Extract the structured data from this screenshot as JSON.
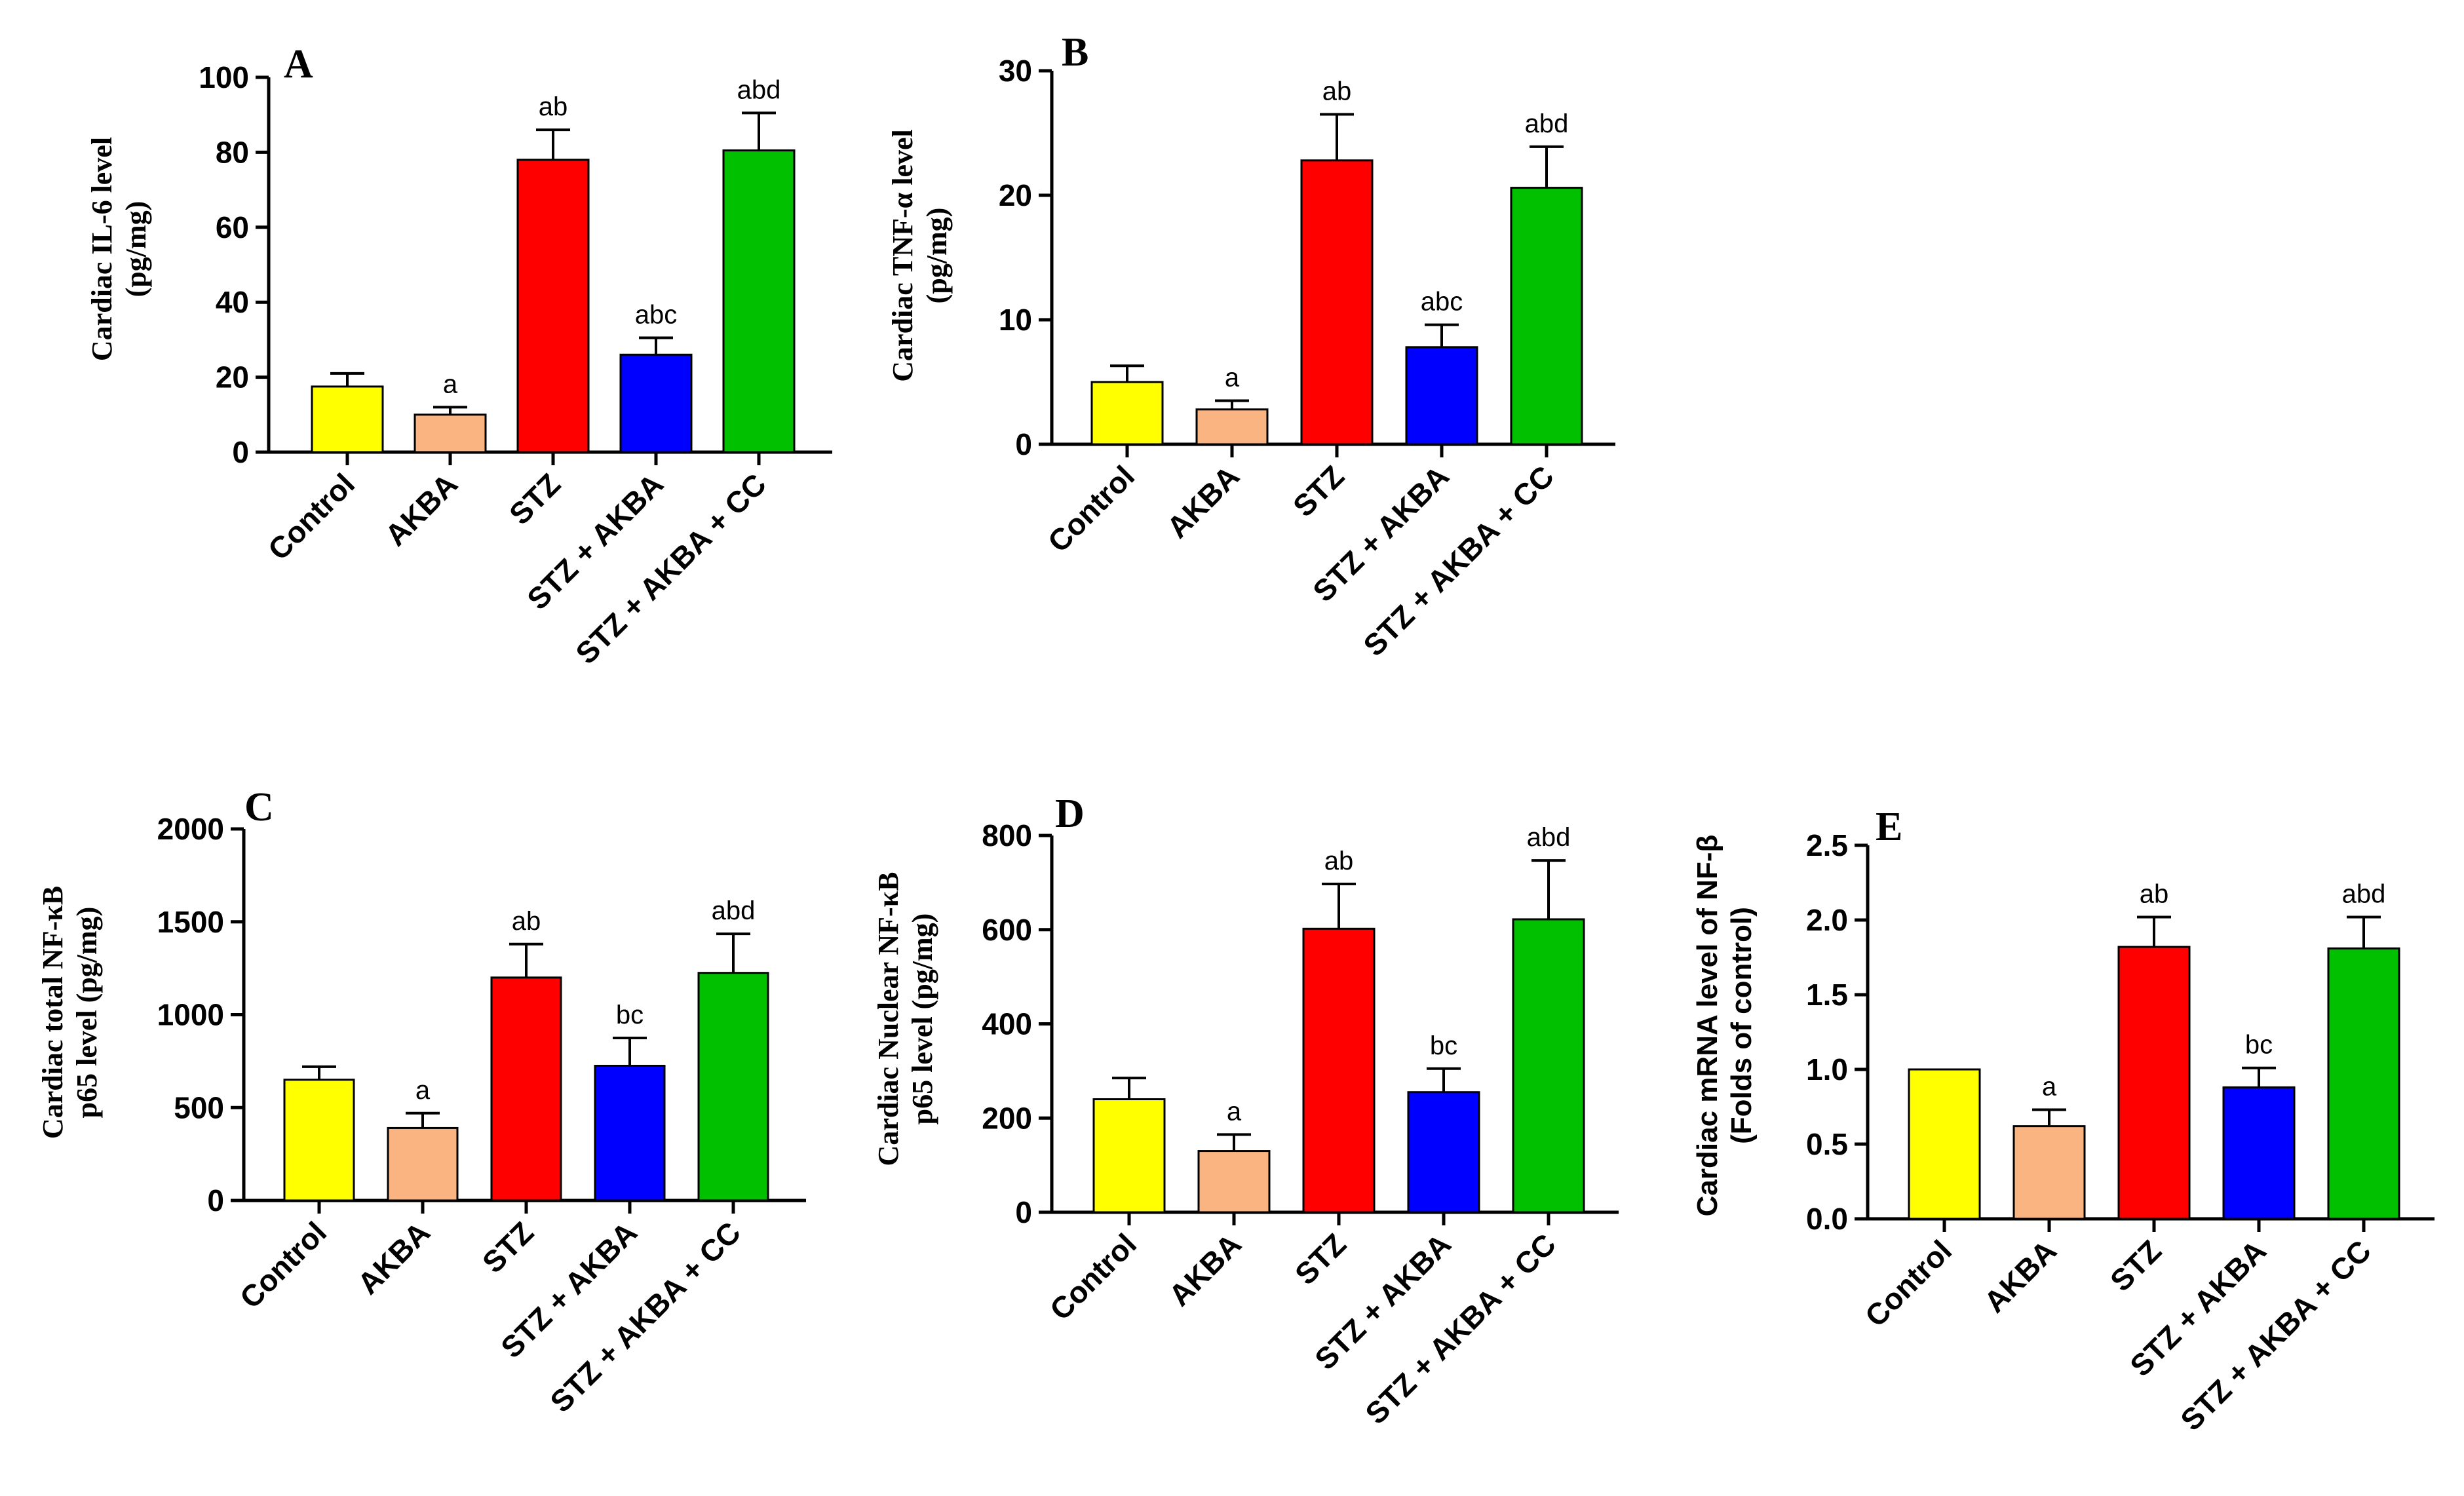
{
  "chart_data": [
    {
      "type": "bar",
      "panel": "A",
      "ylabel": [
        "Cardiac IL-6 level",
        "(pg/mg)"
      ],
      "categories": [
        "Control",
        "AKBA",
        "STZ",
        "STZ + AKBA",
        "STZ + AKBA + CC"
      ],
      "values": [
        17.5,
        10,
        78,
        26,
        80.5
      ],
      "errors": [
        3.5,
        2,
        8,
        4.5,
        10
      ],
      "annotations": [
        "",
        "a",
        "ab",
        "abc",
        "abd"
      ],
      "colors": [
        "#ffff00",
        "#f9b482",
        "#ff0000",
        "#0000ff",
        "#00c000"
      ],
      "ylim": [
        0,
        100
      ],
      "yticks": [
        0,
        20,
        40,
        60,
        80,
        100
      ]
    },
    {
      "type": "bar",
      "panel": "B",
      "ylabel": [
        "Cardiac TNF-α level",
        "(pg/mg)"
      ],
      "categories": [
        "Control",
        "AKBA",
        "STZ",
        "STZ + AKBA",
        "STZ + AKBA + CC"
      ],
      "values": [
        5,
        2.8,
        22.8,
        7.8,
        20.6
      ],
      "errors": [
        1.3,
        0.7,
        3.7,
        1.8,
        3.3
      ],
      "annotations": [
        "",
        "a",
        "ab",
        "abc",
        "abd"
      ],
      "colors": [
        "#ffff00",
        "#f9b482",
        "#ff0000",
        "#0000ff",
        "#00c000"
      ],
      "ylim": [
        0,
        30
      ],
      "yticks": [
        0,
        10,
        20,
        30
      ]
    },
    {
      "type": "bar",
      "panel": "C",
      "ylabel": [
        "Cardiac total NF-κB",
        "p65 level (pg/mg)"
      ],
      "categories": [
        "Control",
        "AKBA",
        "STZ",
        "STZ + AKBA",
        "STZ + AKBA + CC"
      ],
      "values": [
        650,
        390,
        1200,
        725,
        1225
      ],
      "errors": [
        70,
        80,
        180,
        150,
        210
      ],
      "annotations": [
        "",
        "a",
        "ab",
        "bc",
        "abd"
      ],
      "colors": [
        "#ffff00",
        "#f9b482",
        "#ff0000",
        "#0000ff",
        "#00c000"
      ],
      "ylim": [
        0,
        2000
      ],
      "yticks": [
        0,
        500,
        1000,
        1500,
        2000
      ]
    },
    {
      "type": "bar",
      "panel": "D",
      "ylabel": [
        "Cardiac Nuclear NF-κB",
        "p65 level (pg/mg)"
      ],
      "categories": [
        "Control",
        "AKBA",
        "STZ",
        "STZ + AKBA",
        "STZ + AKBA + CC"
      ],
      "values": [
        240,
        130,
        602,
        255,
        622
      ],
      "errors": [
        45,
        35,
        95,
        50,
        125
      ],
      "annotations": [
        "",
        "a",
        "ab",
        "bc",
        "abd"
      ],
      "colors": [
        "#ffff00",
        "#f9b482",
        "#ff0000",
        "#0000ff",
        "#00c000"
      ],
      "ylim": [
        0,
        800
      ],
      "yticks": [
        0,
        200,
        400,
        600,
        800
      ]
    },
    {
      "type": "bar",
      "panel": "E",
      "ylabel": [
        "Cardiac mRNA level of NF-β",
        "(Folds of control)"
      ],
      "categories": [
        "Control",
        "AKBA",
        "STZ",
        "STZ + AKBA",
        "STZ + AKBA + CC"
      ],
      "values": [
        1.0,
        0.62,
        1.82,
        0.88,
        1.81
      ],
      "errors": [
        0,
        0.11,
        0.2,
        0.13,
        0.21
      ],
      "annotations": [
        "",
        "a",
        "ab",
        "bc",
        "abd"
      ],
      "colors": [
        "#ffff00",
        "#f9b482",
        "#ff0000",
        "#0000ff",
        "#00c000"
      ],
      "ylim": [
        0,
        2.5
      ],
      "yticks": [
        0,
        0.5,
        1.0,
        1.5,
        2.0,
        2.5
      ],
      "ytick_labels": [
        "0.0",
        "0.5",
        "1.0",
        "1.5",
        "2.0",
        "2.5"
      ]
    }
  ]
}
